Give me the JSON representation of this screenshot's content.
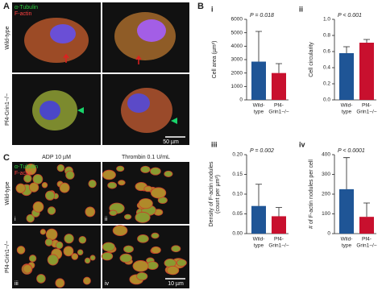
{
  "panel_a": {
    "label": "A",
    "legend": [
      "α-Tubulin",
      "F-actin"
    ],
    "rows": [
      "Wild-type",
      "Pf4-Grin1−/−"
    ],
    "scale_bar": "50 µm"
  },
  "panel_b": {
    "label": "B"
  },
  "chart_data": [
    {
      "type": "bar",
      "label": "i",
      "annotation": "P = 0.018",
      "y_label": "Cell area (µm²)",
      "categories": [
        [
          "Wild-",
          "type"
        ],
        [
          "Pf4-",
          "Grin1−/−"
        ]
      ],
      "colors": [
        "#1f5596",
        "#c8102e"
      ],
      "values": [
        2850,
        2000
      ],
      "errors": [
        2250,
        700
      ],
      "ylim": [
        0,
        6000
      ],
      "yticks": [
        0,
        1000,
        2000,
        3000,
        4000,
        5000,
        6000
      ]
    },
    {
      "type": "bar",
      "label": "ii",
      "annotation": "P < 0.001",
      "y_label": "Cell circularity",
      "categories": [
        [
          "Wild-",
          "type"
        ],
        [
          "Pf4-",
          "Grin1−/−"
        ]
      ],
      "colors": [
        "#1f5596",
        "#c8102e"
      ],
      "values": [
        0.58,
        0.71
      ],
      "errors": [
        0.08,
        0.04
      ],
      "ylim": [
        0,
        1.0
      ],
      "yticks": [
        {
          "value": 0,
          "label": "0.0"
        },
        0.2,
        0.4,
        0.6,
        0.8,
        {
          "value": 1.0,
          "label": "1.0"
        }
      ]
    },
    {
      "type": "bar",
      "label": "iii",
      "annotation": "P = 0.002",
      "y_label": [
        "Density of F-actin nodules",
        "(count per µm²)"
      ],
      "categories": [
        [
          "Wild-",
          "type"
        ],
        [
          "Pf4-",
          "Grin1−/−"
        ]
      ],
      "colors": [
        "#1f5596",
        "#c8102e"
      ],
      "values": [
        0.07,
        0.044
      ],
      "errors": [
        0.055,
        0.022
      ],
      "ylim": [
        0,
        0.2
      ],
      "yticks": [
        {
          "value": 0,
          "label": "0.00"
        },
        0.05,
        {
          "value": 0.1,
          "label": "0.10"
        },
        0.15,
        {
          "value": 0.2,
          "label": "0.20"
        }
      ]
    },
    {
      "type": "bar",
      "label": "iv",
      "annotation": "P < 0.0001",
      "y_label": "# of F-actin nodules per cell",
      "categories": [
        [
          "Wild-",
          "type"
        ],
        [
          "Pf4-",
          "Grin1−/−"
        ]
      ],
      "colors": [
        "#1f5596",
        "#c8102e"
      ],
      "values": [
        225,
        85
      ],
      "errors": [
        160,
        70
      ],
      "ylim": [
        0,
        400
      ],
      "yticks": [
        0,
        100,
        200,
        300,
        400
      ]
    }
  ],
  "panel_c": {
    "label": "C",
    "legend": [
      "α-Tubulin",
      "F-actin"
    ],
    "columns": [
      "ADP 10 µM",
      "Thrombin 0.1 U/mL"
    ],
    "rows": [
      "Wild-type",
      "Pf4-Grin1−/−"
    ],
    "image_labels": [
      "i",
      "ii",
      "iii",
      "iv"
    ],
    "scale_bar": "10 µm"
  }
}
